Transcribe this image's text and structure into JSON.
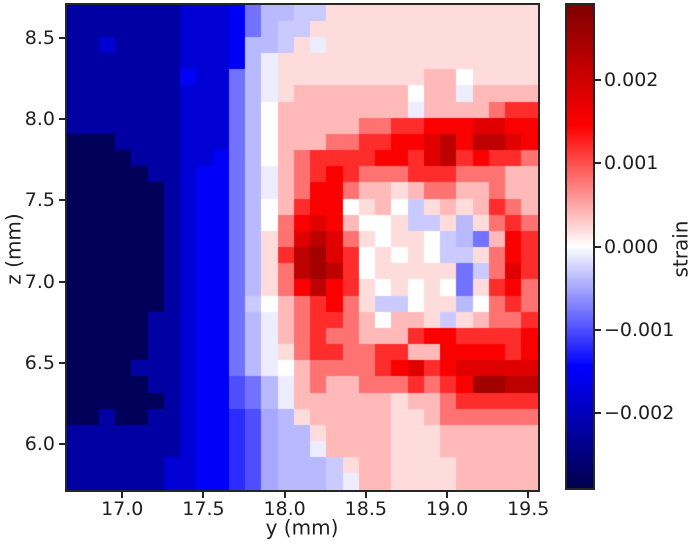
{
  "figure": {
    "background": "#ffffff",
    "text_color": "#1f1f1f",
    "spine_color": "#262626"
  },
  "chart_data": {
    "type": "heatmap",
    "title": "",
    "xlabel": "y (mm)",
    "ylabel": "z (mm)",
    "colorbar_label": "strain",
    "xlim": [
      16.66,
      19.56
    ],
    "ylim": [
      5.72,
      8.7
    ],
    "x_ticks": [
      17.0,
      17.5,
      18.0,
      18.5,
      19.0,
      19.5
    ],
    "x_tick_labels": [
      "17.0",
      "17.5",
      "18.0",
      "18.5",
      "19.0",
      "19.5"
    ],
    "y_ticks": [
      8.5,
      8.0,
      7.5,
      7.0,
      6.5,
      6.0
    ],
    "y_tick_labels": [
      "8.5",
      "8.0",
      "7.5",
      "7.0",
      "6.5",
      "6.0"
    ],
    "colorbar_ticks": [
      0.002,
      0.001,
      0.0,
      -0.001,
      -0.002
    ],
    "colorbar_tick_labels": [
      "0.002",
      "0.001",
      "0.000",
      "−0.001",
      "−0.002"
    ],
    "vmin": -0.0029,
    "vmax": 0.0029,
    "colormap": "seismic",
    "colormap_stops": [
      [
        0.0,
        "#00004d"
      ],
      [
        0.25,
        "#0000ff"
      ],
      [
        0.5,
        "#ffffff"
      ],
      [
        0.75,
        "#ff0000"
      ],
      [
        1.0,
        "#800000"
      ]
    ],
    "grid": {
      "x0": 16.66,
      "dx": 0.1,
      "z0": 8.7,
      "dz": -0.0993,
      "value_scale": 0.0001,
      "note_rows": "rows top-to-bottom (z descending), values are strain in units of 1e-4",
      "values": [
        [
          -22,
          -22,
          -22,
          -22,
          -22,
          -22,
          -22,
          -18,
          -18,
          -18,
          -15,
          -8,
          -4,
          -4,
          -3,
          -3,
          2,
          2,
          2,
          2,
          2,
          2,
          2,
          2,
          2,
          2,
          2,
          2,
          2
        ],
        [
          -22,
          -22,
          -22,
          -22,
          -22,
          -22,
          -22,
          -18,
          -18,
          -18,
          -15,
          -8,
          -4,
          -3,
          -3,
          2,
          2,
          2,
          2,
          2,
          2,
          2,
          2,
          2,
          2,
          2,
          2,
          2,
          2
        ],
        [
          -22,
          -22,
          -18,
          -22,
          -22,
          -22,
          -22,
          -18,
          -18,
          -18,
          -15,
          -4,
          -4,
          -3,
          2,
          -1,
          2,
          2,
          2,
          2,
          2,
          2,
          2,
          2,
          2,
          2,
          2,
          2,
          2
        ],
        [
          -22,
          -22,
          -22,
          -22,
          -22,
          -22,
          -22,
          -18,
          -18,
          -18,
          -15,
          -4,
          -1,
          2,
          2,
          2,
          2,
          2,
          2,
          2,
          2,
          2,
          2,
          2,
          2,
          2,
          2,
          2,
          2
        ],
        [
          -22,
          -22,
          -22,
          -22,
          -22,
          -22,
          -22,
          -15,
          -18,
          -18,
          -8,
          -4,
          -1,
          2,
          2,
          2,
          2,
          2,
          2,
          2,
          2,
          2,
          4,
          4,
          0,
          2,
          2,
          2,
          2
        ],
        [
          -22,
          -22,
          -22,
          -22,
          -22,
          -22,
          -22,
          -18,
          -18,
          -18,
          -8,
          -4,
          -1,
          2,
          4,
          4,
          4,
          4,
          4,
          4,
          4,
          0,
          4,
          4,
          -1,
          4,
          4,
          4,
          4
        ],
        [
          -22,
          -22,
          -22,
          -22,
          -22,
          -22,
          -22,
          -18,
          -18,
          -18,
          -8,
          -4,
          0,
          4,
          4,
          4,
          4,
          4,
          4,
          4,
          4,
          -1,
          4,
          4,
          4,
          4,
          8,
          12,
          12
        ],
        [
          -22,
          -22,
          -22,
          -22,
          -22,
          -22,
          -22,
          -18,
          -18,
          -18,
          -8,
          -4,
          0,
          4,
          4,
          4,
          4,
          4,
          8,
          8,
          12,
          12,
          15,
          15,
          15,
          18,
          18,
          15,
          15
        ],
        [
          -28,
          -28,
          -28,
          -22,
          -22,
          -22,
          -22,
          -18,
          -18,
          -18,
          -8,
          -4,
          0,
          4,
          4,
          4,
          8,
          8,
          12,
          12,
          15,
          15,
          18,
          22,
          15,
          22,
          22,
          18,
          15
        ],
        [
          -28,
          -28,
          -28,
          -28,
          -22,
          -22,
          -22,
          -18,
          -18,
          -15,
          -8,
          -4,
          0,
          4,
          8,
          12,
          12,
          12,
          12,
          15,
          15,
          12,
          18,
          22,
          12,
          15,
          12,
          12,
          8
        ],
        [
          -28,
          -28,
          -28,
          -28,
          -28,
          -22,
          -22,
          -18,
          -15,
          -15,
          -8,
          -4,
          -1,
          4,
          8,
          12,
          15,
          12,
          8,
          8,
          8,
          12,
          12,
          12,
          8,
          8,
          8,
          4,
          4
        ],
        [
          -28,
          -28,
          -28,
          -28,
          -28,
          -28,
          -22,
          -18,
          -15,
          -15,
          -8,
          -4,
          -1,
          4,
          8,
          15,
          15,
          8,
          4,
          4,
          2,
          4,
          8,
          8,
          4,
          4,
          8,
          4,
          4
        ],
        [
          -28,
          -28,
          -28,
          -28,
          -28,
          -28,
          -22,
          -18,
          -15,
          -15,
          -8,
          -4,
          0,
          4,
          12,
          15,
          15,
          0,
          2,
          4,
          0,
          -3,
          2,
          4,
          2,
          4,
          12,
          8,
          4
        ],
        [
          -28,
          -28,
          -28,
          -28,
          -28,
          -28,
          -22,
          -18,
          -15,
          -15,
          -8,
          -4,
          0,
          8,
          15,
          18,
          15,
          4,
          0,
          0,
          2,
          -3,
          -3,
          2,
          -4,
          2,
          8,
          12,
          8
        ],
        [
          -28,
          -28,
          -28,
          -28,
          -28,
          -28,
          -22,
          -18,
          -15,
          -15,
          -8,
          -4,
          2,
          8,
          18,
          22,
          18,
          8,
          2,
          0,
          2,
          2,
          0,
          -3,
          -4,
          -8,
          4,
          15,
          12
        ],
        [
          -28,
          -28,
          -28,
          -28,
          -28,
          -28,
          -22,
          -18,
          -15,
          -15,
          -8,
          -4,
          2,
          12,
          22,
          25,
          18,
          12,
          0,
          2,
          0,
          2,
          0,
          -3,
          -3,
          2,
          8,
          15,
          12
        ],
        [
          -28,
          -28,
          -28,
          -28,
          -28,
          -28,
          -22,
          -18,
          -15,
          -15,
          -8,
          -4,
          2,
          8,
          22,
          25,
          22,
          12,
          0,
          2,
          2,
          2,
          2,
          2,
          -8,
          -3,
          8,
          18,
          12
        ],
        [
          -28,
          -28,
          -28,
          -28,
          -28,
          -28,
          -22,
          -18,
          -15,
          -15,
          -8,
          -4,
          2,
          8,
          15,
          22,
          15,
          12,
          2,
          0,
          2,
          0,
          2,
          0,
          -8,
          2,
          12,
          15,
          8
        ],
        [
          -28,
          -28,
          -28,
          -28,
          -28,
          -28,
          -22,
          -18,
          -15,
          -15,
          -8,
          -3,
          0,
          4,
          8,
          12,
          15,
          8,
          2,
          -3,
          -3,
          0,
          2,
          2,
          -4,
          0,
          8,
          12,
          8
        ],
        [
          -28,
          -28,
          -28,
          -28,
          -28,
          -22,
          -22,
          -18,
          -15,
          -15,
          -8,
          -4,
          -1,
          4,
          8,
          12,
          12,
          8,
          4,
          0,
          4,
          4,
          2,
          -3,
          2,
          4,
          8,
          8,
          12
        ],
        [
          -28,
          -28,
          -28,
          -28,
          -28,
          -22,
          -22,
          -18,
          -15,
          -15,
          -8,
          -4,
          -1,
          4,
          8,
          12,
          8,
          8,
          4,
          4,
          4,
          12,
          15,
          15,
          12,
          12,
          12,
          12,
          15
        ],
        [
          -28,
          -28,
          -28,
          -28,
          -28,
          -22,
          -22,
          -18,
          -15,
          -15,
          -8,
          -4,
          -1,
          2,
          8,
          12,
          12,
          8,
          8,
          12,
          12,
          4,
          4,
          15,
          15,
          15,
          15,
          12,
          15
        ],
        [
          -28,
          -28,
          -28,
          -28,
          -22,
          -22,
          -22,
          -18,
          -15,
          -15,
          -8,
          -4,
          -1,
          0,
          4,
          8,
          8,
          8,
          8,
          12,
          15,
          18,
          12,
          15,
          18,
          18,
          18,
          18,
          18
        ],
        [
          -28,
          -28,
          -28,
          -28,
          -28,
          -22,
          -22,
          -18,
          -15,
          -15,
          -10,
          -8,
          -4,
          -1,
          4,
          8,
          4,
          4,
          8,
          8,
          8,
          12,
          8,
          12,
          15,
          25,
          25,
          22,
          22
        ],
        [
          -28,
          -28,
          -28,
          -28,
          -28,
          -28,
          -22,
          -18,
          -15,
          -15,
          -10,
          -8,
          -4,
          -1,
          4,
          4,
          4,
          4,
          4,
          4,
          2,
          4,
          4,
          8,
          12,
          12,
          12,
          12,
          12
        ],
        [
          -28,
          -28,
          -22,
          -28,
          -28,
          -22,
          -22,
          -18,
          -15,
          -15,
          -12,
          -10,
          -5,
          -4,
          2,
          4,
          4,
          4,
          4,
          4,
          2,
          2,
          4,
          8,
          8,
          8,
          8,
          8,
          8
        ],
        [
          -22,
          -22,
          -22,
          -22,
          -22,
          -22,
          -22,
          -18,
          -15,
          -15,
          -12,
          -10,
          -5,
          -4,
          -4,
          2,
          4,
          4,
          4,
          4,
          2,
          2,
          2,
          4,
          4,
          4,
          4,
          4,
          4
        ],
        [
          -22,
          -22,
          -22,
          -22,
          -22,
          -22,
          -22,
          -18,
          -15,
          -15,
          -12,
          -10,
          -5,
          -4,
          -4,
          -1,
          4,
          4,
          4,
          4,
          2,
          2,
          2,
          4,
          4,
          4,
          4,
          4,
          4
        ],
        [
          -22,
          -22,
          -22,
          -22,
          -22,
          -22,
          -18,
          -18,
          -15,
          -15,
          -12,
          -10,
          -5,
          -4,
          -4,
          -4,
          -3,
          2,
          4,
          4,
          2,
          2,
          2,
          2,
          4,
          4,
          4,
          4,
          4
        ],
        [
          -22,
          -22,
          -22,
          -22,
          -22,
          -22,
          -18,
          -18,
          -15,
          -15,
          -12,
          -10,
          -5,
          -4,
          -4,
          -4,
          -3,
          -1,
          4,
          4,
          2,
          2,
          2,
          2,
          4,
          4,
          4,
          4,
          4
        ]
      ]
    }
  }
}
